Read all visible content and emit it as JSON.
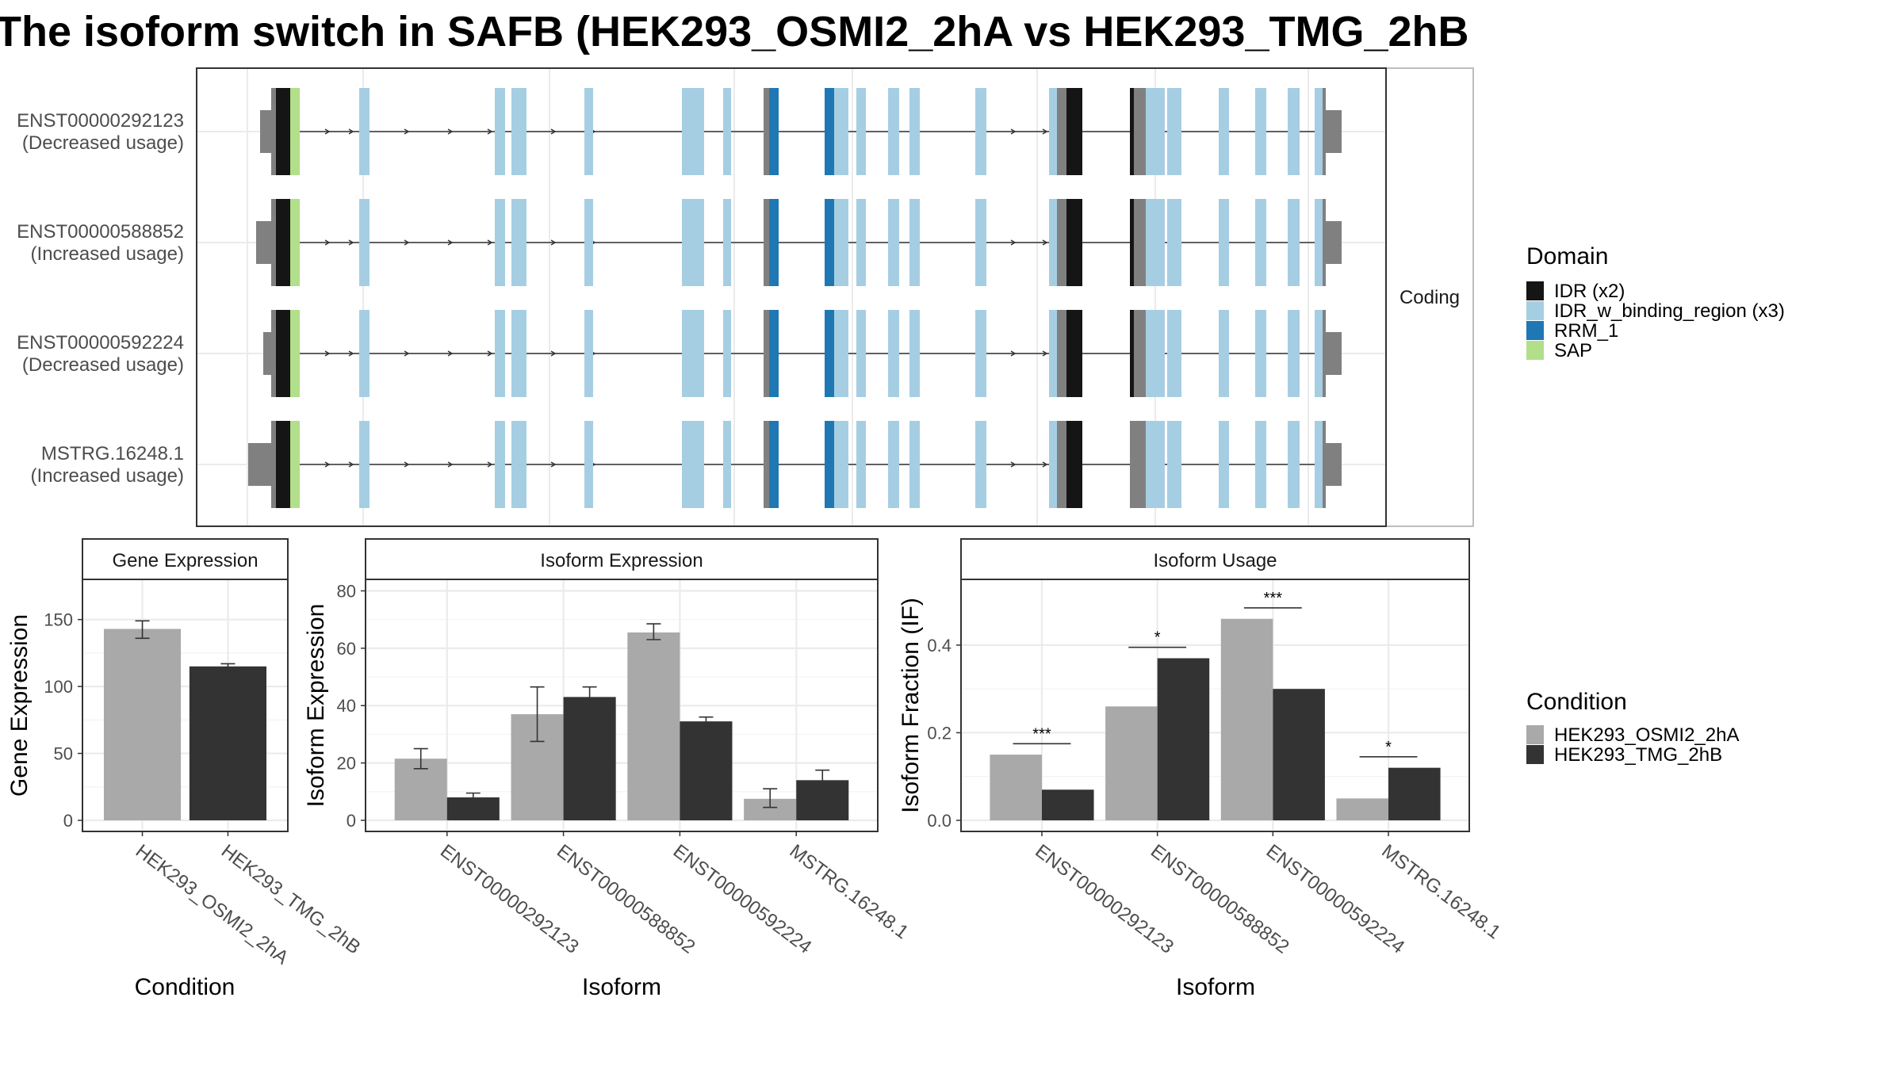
{
  "title": "The isoform switch in SAFB (HEK293_OSMI2_2hA vs HEK293_TMG_2hB",
  "structure": {
    "facet_label": "Coding",
    "isoforms": [
      {
        "id": "ENST00000292123",
        "usage": "(Decreased usage)"
      },
      {
        "id": "ENST00000588852",
        "usage": "(Increased usage)"
      },
      {
        "id": "ENST00000592224",
        "usage": "(Decreased usage)"
      },
      {
        "id": "MSTRG.16248.1",
        "usage": "(Increased usage)"
      }
    ]
  },
  "domain_legend": {
    "title": "Domain",
    "items": [
      {
        "label": "IDR (x2)",
        "color": "#151515"
      },
      {
        "label": "IDR_w_binding_region (x3)",
        "color": "#a6cee3"
      },
      {
        "label": "RRM_1",
        "color": "#1f78b4"
      },
      {
        "label": "SAP",
        "color": "#b2df8a"
      }
    ]
  },
  "condition_legend": {
    "title": "Condition",
    "items": [
      {
        "label": "HEK293_OSMI2_2hA",
        "color": "#a9a9a9"
      },
      {
        "label": "HEK293_TMG_2hB",
        "color": "#333333"
      }
    ]
  },
  "chart_data": [
    {
      "type": "bar",
      "title": "Gene Expression",
      "xlabel": "Condition",
      "ylabel": "Gene Expression",
      "categories": [
        "HEK293_OSMI2_2hA",
        "HEK293_TMG_2hB"
      ],
      "values": [
        143,
        115
      ],
      "error": [
        [
          136,
          149
        ],
        [
          112,
          117
        ]
      ],
      "ylim": [
        0,
        180
      ],
      "yticks": [
        0,
        50,
        100,
        150
      ]
    },
    {
      "type": "bar",
      "title": "Isoform Expression",
      "xlabel": "Isoform",
      "ylabel": "Isoform Expression",
      "categories": [
        "ENST00000292123",
        "ENST00000588852",
        "ENST00000592224",
        "MSTRG.16248.1"
      ],
      "series": [
        {
          "name": "HEK293_OSMI2_2hA",
          "values": [
            21.5,
            37,
            65.5,
            7.5
          ],
          "error": [
            [
              18,
              25
            ],
            [
              27.5,
              46.5
            ],
            [
              63,
              68.5
            ],
            [
              4.5,
              11
            ]
          ]
        },
        {
          "name": "HEK293_TMG_2hB",
          "values": [
            8,
            43,
            34.5,
            14
          ],
          "error": [
            [
              6.5,
              9.5
            ],
            [
              39.5,
              46.5
            ],
            [
              33,
              36
            ],
            [
              11,
              17.5
            ]
          ]
        }
      ],
      "ylim": [
        0,
        84
      ],
      "yticks": [
        0,
        20,
        40,
        60,
        80
      ]
    },
    {
      "type": "bar",
      "title": "Isoform Usage",
      "xlabel": "Isoform",
      "ylabel": "Isoform Fraction (IF)",
      "categories": [
        "ENST00000292123",
        "ENST00000588852",
        "ENST00000592224",
        "MSTRG.16248.1"
      ],
      "series": [
        {
          "name": "HEK293_OSMI2_2hA",
          "values": [
            0.15,
            0.26,
            0.46,
            0.05
          ]
        },
        {
          "name": "HEK293_TMG_2hB",
          "values": [
            0.07,
            0.37,
            0.3,
            0.12
          ]
        }
      ],
      "significance": [
        "***",
        "*",
        "***",
        "*"
      ],
      "sig_y": [
        0.175,
        0.395,
        0.485,
        0.145
      ],
      "ylim": [
        0,
        0.55
      ],
      "yticks": [
        0.0,
        0.2,
        0.4
      ],
      "ytick_labels": [
        "0.0",
        "0.2",
        "0.4"
      ]
    }
  ]
}
